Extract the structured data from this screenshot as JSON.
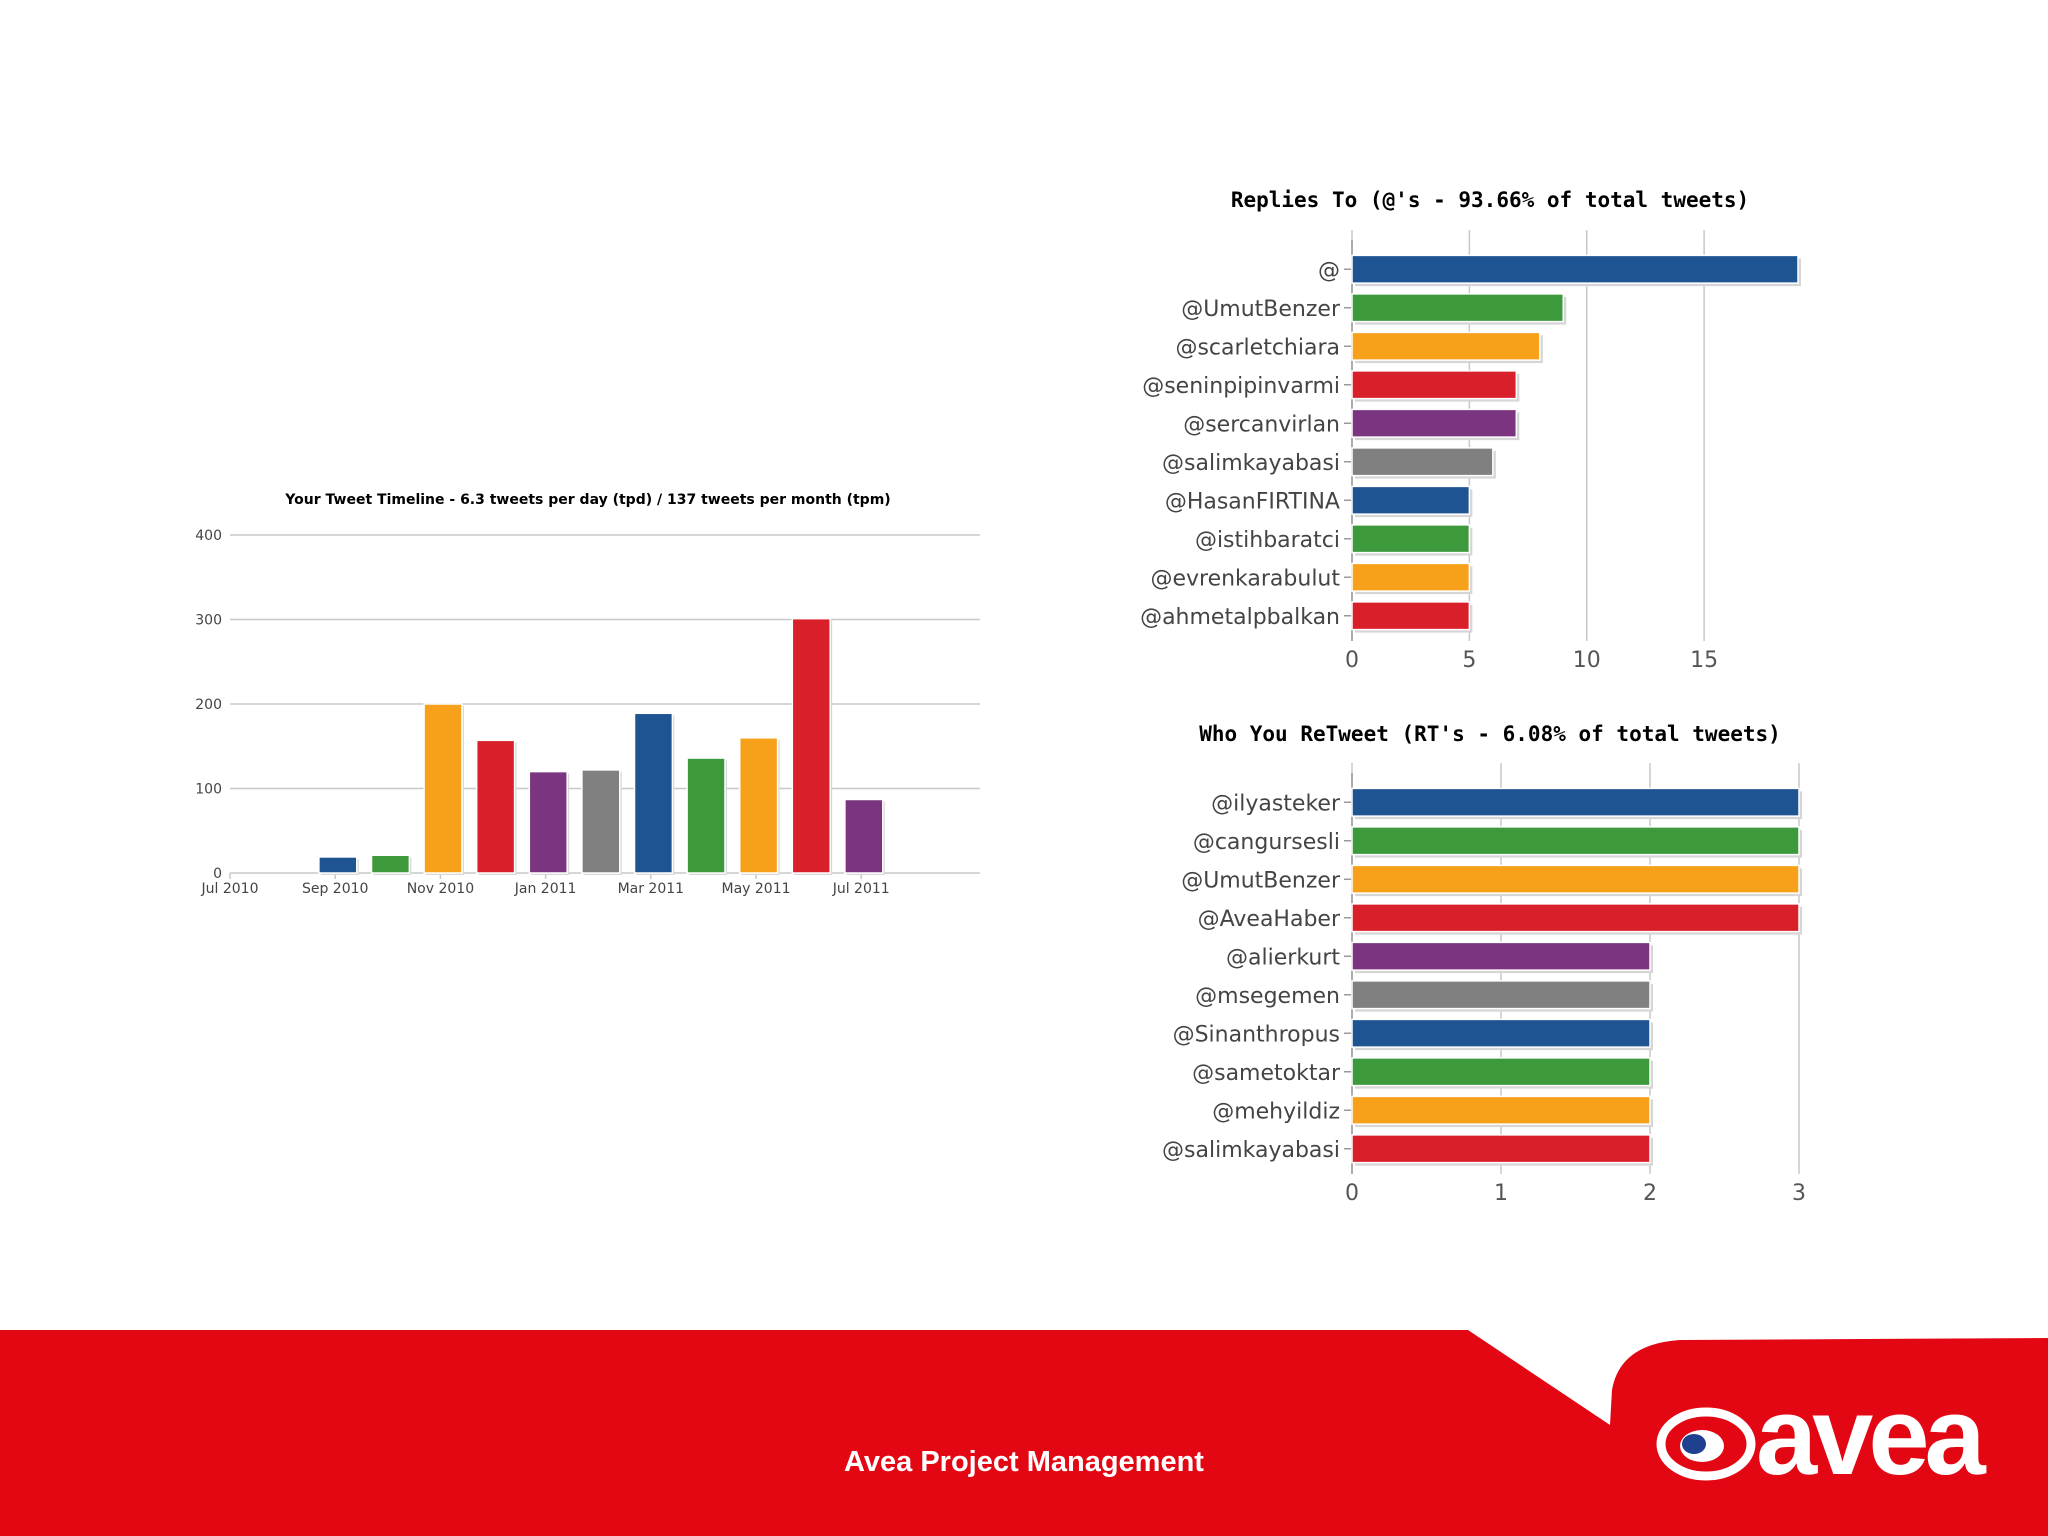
{
  "colors": {
    "palette": [
      "#1f5493",
      "#3c9a3c",
      "#f7a11a",
      "#d91f2a",
      "#7b3580",
      "#808080"
    ],
    "brand_red": "#e30613",
    "gridline": "#c8c8c8"
  },
  "charts": {
    "timeline": {
      "type": "bar",
      "title": "Your Tweet Timeline - 6.3 tweets per day (tpd) / 137 tweets per month (tpm)",
      "x_tick_labels": [
        "Jul 2010",
        "Sep 2010",
        "Nov 2010",
        "Jan 2011",
        "Mar 2011",
        "May 2011",
        "Jul 2011"
      ],
      "y_ticks": [
        0,
        100,
        200,
        300,
        400
      ]
    },
    "replies": {
      "type": "bar",
      "orientation": "horizontal",
      "title": "Replies To (@'s - 93.66% of total tweets)",
      "x_ticks": [
        0,
        5,
        10,
        15
      ]
    },
    "retweets": {
      "type": "bar",
      "orientation": "horizontal",
      "title": "Who You ReTweet (RT's - 6.08% of total tweets)",
      "x_ticks": [
        0,
        1,
        2,
        3
      ]
    }
  },
  "chart_data": [
    {
      "type": "bar",
      "title": "Your Tweet Timeline - 6.3 tweets per day (tpd) / 137 tweets per month (tpm)",
      "xlabel": "",
      "ylabel": "",
      "x": [
        "2010-08",
        "2010-09",
        "2010-10",
        "2010-11",
        "2010-12",
        "2011-01",
        "2011-02",
        "2011-03",
        "2011-04",
        "2011-05",
        "2011-06",
        "2011-07"
      ],
      "values": [
        0,
        19,
        21,
        200,
        157,
        120,
        122,
        189,
        136,
        160,
        301,
        87
      ],
      "ylim": [
        0,
        400
      ],
      "grid": true
    },
    {
      "type": "bar",
      "orientation": "horizontal",
      "title": "Replies To (@'s - 93.66% of total tweets)",
      "categories": [
        "@",
        "@UmutBenzer",
        "@scarletchiara",
        "@seninpipinvarmi",
        "@sercanvirlan",
        "@salimkayabasi",
        "@HasanFIRTINA",
        "@istihbaratci",
        "@evrenkarabulut",
        "@ahmetalpbalkan"
      ],
      "values": [
        19,
        9,
        8,
        7,
        7,
        6,
        5,
        5,
        5,
        5
      ],
      "xlim": [
        0,
        19
      ],
      "grid": true
    },
    {
      "type": "bar",
      "orientation": "horizontal",
      "title": "Who You ReTweet (RT's - 6.08% of total tweets)",
      "categories": [
        "@ilyasteker",
        "@cangursesli",
        "@UmutBenzer",
        "@AveaHaber",
        "@alierkurt",
        "@msegemen",
        "@Sinanthropus",
        "@sametoktar",
        "@mehyildiz",
        "@salimkayabasi"
      ],
      "values": [
        3,
        3,
        3,
        3,
        2,
        2,
        2,
        2,
        2,
        2
      ],
      "xlim": [
        0,
        3
      ],
      "grid": true
    }
  ],
  "footer": {
    "text": "Avea Project Management",
    "logo_text": "avea"
  }
}
